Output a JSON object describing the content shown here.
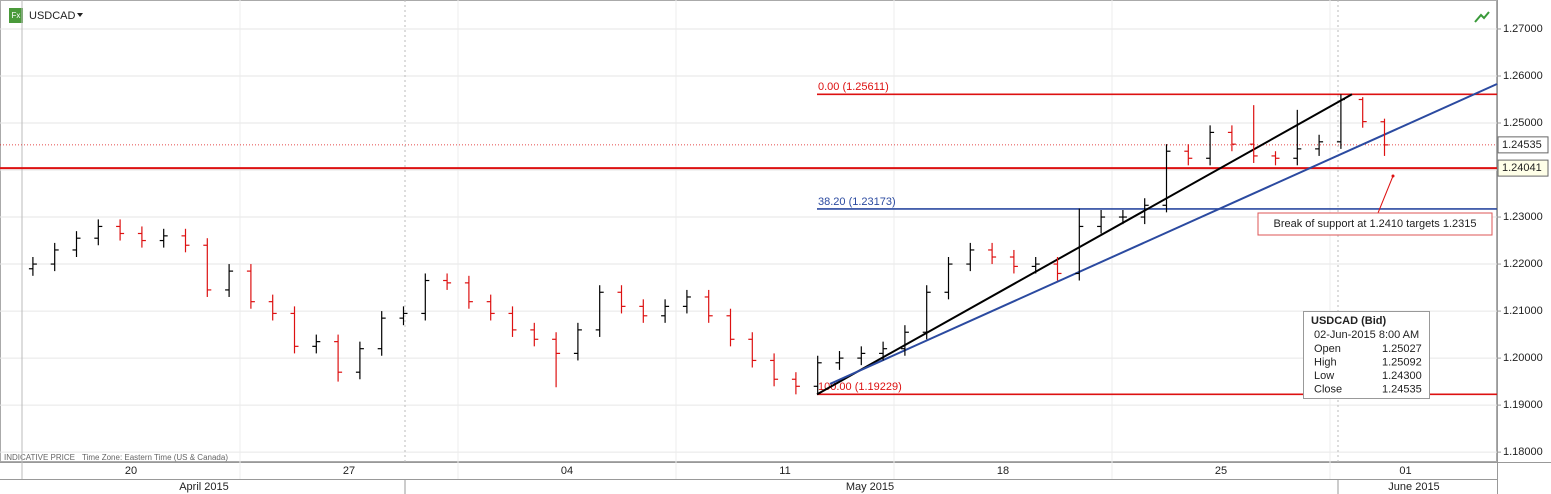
{
  "chart_data": {
    "type": "ohlc",
    "symbol": "USDCAD",
    "icon_label": "Fx",
    "footer": {
      "price_note": "INDICATIVE PRICE",
      "time_zone": "Time Zone: Eastern Time (US & Canada)"
    },
    "week_labels": [
      "20",
      "27",
      "04",
      "11",
      "18",
      "25",
      "01"
    ],
    "month_labels": [
      "April 2015",
      "May 2015",
      "June 2015"
    ],
    "up_color": "#000000",
    "down_color": "#dd1111",
    "ylim": [
      1.1779,
      1.2751
    ],
    "yticks": [
      {
        "value": 1.18,
        "label": "1.18000"
      },
      {
        "value": 1.19,
        "label": "1.19000"
      },
      {
        "value": 1.2,
        "label": "1.20000"
      },
      {
        "value": 1.21,
        "label": "1.21000"
      },
      {
        "value": 1.22,
        "label": "1.22000"
      },
      {
        "value": 1.23,
        "label": "1.23000"
      },
      {
        "value": 1.24,
        "label": "1.24000"
      },
      {
        "value": 1.25,
        "label": "1.25000"
      },
      {
        "value": 1.26,
        "label": "1.26000"
      },
      {
        "value": 1.27,
        "label": "1.27000"
      }
    ],
    "grid": true,
    "ohlc": {
      "open": [
        1.219,
        1.22,
        1.223,
        1.2255,
        1.228,
        1.2265,
        1.225,
        1.226,
        1.224,
        1.2145,
        1.2185,
        1.212,
        1.2095,
        1.2025,
        1.2035,
        1.197,
        1.202,
        1.2085,
        1.2095,
        1.2165,
        1.216,
        1.212,
        1.2095,
        1.206,
        1.204,
        1.201,
        1.206,
        1.214,
        1.211,
        1.209,
        1.211,
        1.213,
        1.209,
        1.204,
        1.1995,
        1.1955,
        1.194,
        1.199,
        1.2,
        1.201,
        1.202,
        1.2055,
        1.214,
        1.22,
        1.223,
        1.2215,
        1.2195,
        1.22,
        1.218,
        1.228,
        1.23,
        1.23,
        1.2325,
        1.244,
        1.2425,
        1.248,
        1.2455,
        1.243,
        1.2425,
        1.2445,
        1.246,
        1.255,
        1.25027
      ],
      "high": [
        1.2215,
        1.2245,
        1.227,
        1.2295,
        1.2295,
        1.228,
        1.2275,
        1.2275,
        1.2255,
        1.22,
        1.22,
        1.2135,
        1.211,
        1.205,
        1.205,
        1.2035,
        1.21,
        1.211,
        1.218,
        1.218,
        1.2175,
        1.2135,
        1.211,
        1.2075,
        1.2055,
        1.2075,
        1.2155,
        1.2155,
        1.2125,
        1.2125,
        1.2145,
        1.2145,
        1.2105,
        1.2055,
        1.201,
        1.197,
        1.2005,
        1.2015,
        1.2025,
        1.2035,
        1.207,
        1.2155,
        1.2215,
        1.2245,
        1.2245,
        1.223,
        1.2215,
        1.2215,
        1.2318,
        1.2315,
        1.2315,
        1.234,
        1.2455,
        1.2455,
        1.2495,
        1.2495,
        1.2538,
        1.244,
        1.2528,
        1.2475,
        1.25611,
        1.2555,
        1.25092
      ],
      "low": [
        1.2175,
        1.2185,
        1.2215,
        1.224,
        1.225,
        1.2235,
        1.2235,
        1.2225,
        1.213,
        1.213,
        1.2105,
        1.208,
        1.201,
        1.201,
        1.195,
        1.1955,
        1.2005,
        1.207,
        1.208,
        1.2145,
        1.2105,
        1.208,
        1.2045,
        1.2025,
        1.1938,
        1.1995,
        1.2045,
        1.2095,
        1.2075,
        1.2075,
        1.2095,
        1.2075,
        1.2025,
        1.198,
        1.194,
        1.19229,
        1.1925,
        1.1975,
        1.1985,
        1.1995,
        1.2005,
        1.204,
        1.2125,
        1.2185,
        1.22,
        1.218,
        1.218,
        1.2165,
        1.2165,
        1.2265,
        1.2285,
        1.2285,
        1.231,
        1.241,
        1.241,
        1.244,
        1.2415,
        1.241,
        1.241,
        1.243,
        1.2445,
        1.249,
        1.243
      ],
      "close": [
        1.22,
        1.223,
        1.2255,
        1.228,
        1.2265,
        1.225,
        1.226,
        1.224,
        1.2145,
        1.2185,
        1.212,
        1.2095,
        1.2025,
        1.2035,
        1.197,
        1.202,
        1.2085,
        1.2095,
        1.2165,
        1.216,
        1.212,
        1.2095,
        1.206,
        1.204,
        1.201,
        1.206,
        1.214,
        1.211,
        1.209,
        1.211,
        1.213,
        1.209,
        1.204,
        1.1995,
        1.1955,
        1.194,
        1.199,
        1.2,
        1.201,
        1.202,
        1.2055,
        1.214,
        1.22,
        1.223,
        1.2215,
        1.2195,
        1.22,
        1.218,
        1.228,
        1.23,
        1.23,
        1.2325,
        1.244,
        1.2425,
        1.248,
        1.2455,
        1.243,
        1.2425,
        1.2445,
        1.246,
        1.255,
        1.2503,
        1.24535
      ]
    },
    "fib_levels": [
      {
        "label": "0.00 (1.25611)",
        "value": 1.25611,
        "color": "#dd1111"
      },
      {
        "label": "38.20 (1.23173)",
        "value": 1.23173,
        "color": "#2b4aa0"
      },
      {
        "label": "100.00 (1.19229)",
        "value": 1.19229,
        "color": "#dd1111"
      }
    ],
    "support_level": {
      "value": 1.24041,
      "color": "#dd1111"
    },
    "last_price": 1.24535,
    "trendlines": [
      {
        "from": 1.19229,
        "to": 1.25611,
        "color": "#000000"
      },
      {
        "from": 1.1945,
        "to": 1.2583,
        "color": "#2b4aa0"
      }
    ],
    "annotation": "Break of support at 1.2410 targets 1.2315",
    "tooltip": {
      "title": "USDCAD (Bid)",
      "time": "02-Jun-2015 8:00 AM",
      "rows": [
        [
          "Open",
          "1.25027"
        ],
        [
          "High",
          "1.25092"
        ],
        [
          "Low",
          "1.24300"
        ],
        [
          "Close",
          "1.24535"
        ]
      ]
    }
  }
}
